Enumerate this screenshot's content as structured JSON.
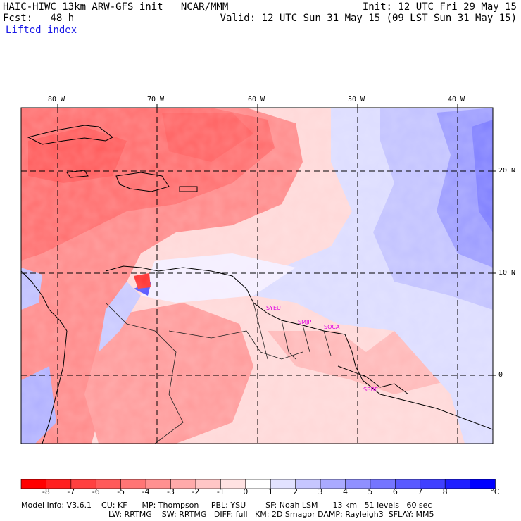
{
  "header": {
    "line1_left": "HAIC-HIWC 13km ARW-GFS init   NCAR/MMM",
    "line1_right": "Init: 12 UTC Fri 29 May 15",
    "line2_left": "Fcst:   48 h",
    "line2_right": "Valid: 12 UTC Sun 31 May 15 (09 LST Sun 31 May 15)",
    "field_name": "Lifted index"
  },
  "axes": {
    "lon_labels": [
      "80 W",
      "70 W",
      "60 W",
      "50 W",
      "40 W"
    ],
    "lat_labels": [
      "20 N",
      "10 N",
      "0"
    ]
  },
  "stations": [
    "SYEU",
    "SMJP",
    "SOCA",
    "SBBE"
  ],
  "colorbar": {
    "unit": "°C",
    "labels": [
      "-8",
      "-7",
      "-6",
      "-5",
      "-4",
      "-3",
      "-2",
      "-1",
      "0",
      "1",
      "2",
      "3",
      "4",
      "5",
      "6",
      "7",
      "8"
    ],
    "colors": [
      "#ff0000",
      "#ff2020",
      "#ff4040",
      "#ff5a5a",
      "#ff7575",
      "#ff9090",
      "#ffaaaa",
      "#ffc6c6",
      "#ffe2e2",
      "#ffffff",
      "#e2e2ff",
      "#c6c6ff",
      "#aaaaff",
      "#9090ff",
      "#7575ff",
      "#5a5aff",
      "#4040ff",
      "#2020ff",
      "#0000ff"
    ]
  },
  "footer": {
    "line1": "Model Info: V3.6.1    CU: KF      MP: Thompson     PBL: YSU        SF: Noah LSM      13 km   51 levels   60 sec",
    "line2": "LW: RRTMG    SW: RRTMG   DIFF: full   KM: 2D Smagor DAMP: Rayleigh3  SFLAY: MM5"
  }
}
